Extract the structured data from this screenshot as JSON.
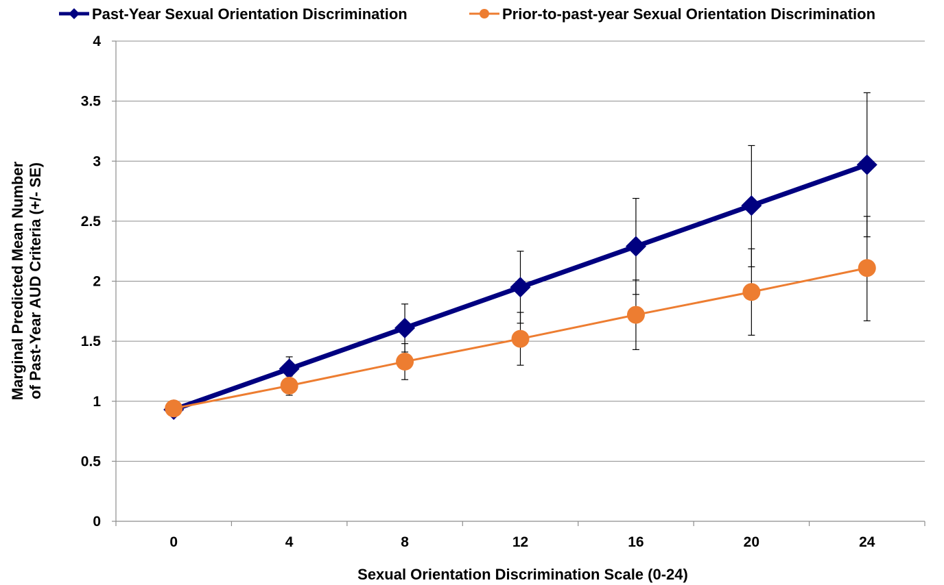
{
  "chart_data": {
    "type": "line",
    "title": "",
    "xlabel": "Sexual Orientation Discrimination Scale (0-24)",
    "ylabel_lines": [
      "Marginal Predicted Mean Number",
      "of Past-Year AUD Criteria (+/- SE)"
    ],
    "x": [
      0,
      4,
      8,
      12,
      16,
      20,
      24
    ],
    "x_tick_labels": [
      "0",
      "4",
      "8",
      "12",
      "16",
      "20",
      "24"
    ],
    "ylim": [
      0,
      4
    ],
    "y_tick_labels": [
      "0",
      "0.5",
      "1",
      "1.5",
      "2",
      "2.5",
      "3",
      "3.5",
      "4"
    ],
    "grid": true,
    "legend_position": "top",
    "series": [
      {
        "name": "Past-Year Sexual Orientation Discrimination",
        "color": "#000080",
        "marker": "diamond",
        "values": [
          0.93,
          1.27,
          1.61,
          1.95,
          2.29,
          2.63,
          2.97
        ],
        "err_low": [
          0.91,
          1.17,
          1.41,
          1.65,
          1.89,
          2.12,
          2.37
        ],
        "err_high": [
          0.95,
          1.37,
          1.81,
          2.25,
          2.69,
          3.13,
          3.57
        ]
      },
      {
        "name": "Prior-to-past-year Sexual Orientation Discrimination",
        "color": "#ED7D31",
        "marker": "circle",
        "values": [
          0.94,
          1.13,
          1.33,
          1.52,
          1.72,
          1.91,
          2.11
        ],
        "err_low": [
          0.92,
          1.05,
          1.18,
          1.3,
          1.43,
          1.55,
          1.67
        ],
        "err_high": [
          0.96,
          1.21,
          1.48,
          1.74,
          2.01,
          2.27,
          2.54
        ]
      }
    ]
  }
}
